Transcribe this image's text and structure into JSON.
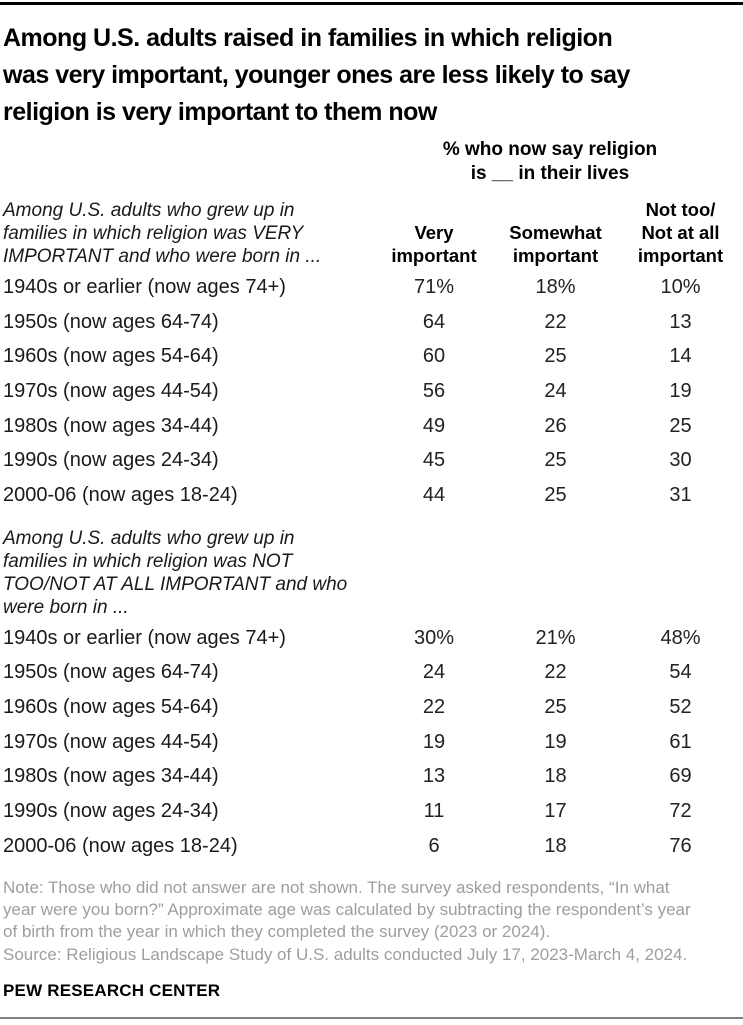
{
  "colors": {
    "title_text": "#000000",
    "body_text": "#222222",
    "note_text": "#9e9e9e",
    "top_rule": "#000000",
    "bottom_rule": "#828282"
  },
  "chart_data": {
    "type": "table",
    "title": "Among U.S. adults raised in families in which religion\nwas very important, younger ones are less likely to say\nreligion is very important to them now",
    "subtitle": "% who now say religion\nis __ in their lives",
    "columns": [
      "Very\nimportant",
      "Somewhat\nimportant",
      "Not too/\nNot at all\nimportant"
    ],
    "sections": [
      {
        "label": "Among U.S. adults who grew up in\nfamilies in which religion was VERY\nIMPORTANT and who were born in ...",
        "rows": [
          {
            "label": "1940s or earlier (now ages 74+)",
            "values": [
              "71%",
              "18%",
              "10%"
            ]
          },
          {
            "label": "1950s (now ages 64-74)",
            "values": [
              "64",
              "22",
              "13"
            ]
          },
          {
            "label": "1960s (now ages 54-64)",
            "values": [
              "60",
              "25",
              "14"
            ]
          },
          {
            "label": "1970s (now ages 44-54)",
            "values": [
              "56",
              "24",
              "19"
            ]
          },
          {
            "label": "1980s (now ages 34-44)",
            "values": [
              "49",
              "26",
              "25"
            ]
          },
          {
            "label": "1990s (now ages 24-34)",
            "values": [
              "45",
              "25",
              "30"
            ]
          },
          {
            "label": "2000-06 (now ages 18-24)",
            "values": [
              "44",
              "25",
              "31"
            ]
          }
        ]
      },
      {
        "label": "Among U.S. adults who grew up in\nfamilies in which religion was NOT\nTOO/NOT AT ALL IMPORTANT and who\nwere born in ...",
        "rows": [
          {
            "label": "1940s or earlier (now ages 74+)",
            "values": [
              "30%",
              "21%",
              "48%"
            ]
          },
          {
            "label": "1950s (now ages 64-74)",
            "values": [
              "24",
              "22",
              "54"
            ]
          },
          {
            "label": "1960s (now ages 54-64)",
            "values": [
              "22",
              "25",
              "52"
            ]
          },
          {
            "label": "1970s (now ages 44-54)",
            "values": [
              "19",
              "19",
              "61"
            ]
          },
          {
            "label": "1980s (now ages 34-44)",
            "values": [
              "13",
              "18",
              "69"
            ]
          },
          {
            "label": "1990s (now ages 24-34)",
            "values": [
              "11",
              "17",
              "72"
            ]
          },
          {
            "label": "2000-06 (now ages 18-24)",
            "values": [
              "6",
              "18",
              "76"
            ]
          }
        ]
      }
    ],
    "footer": {
      "note": "Note: Those who did not answer are not shown. The survey asked respondents, “In what\nyear were you born?” Approximate age was calculated by subtracting the respondent’s year\nof birth from the year in which they completed the survey (2023 or 2024).\nSource: Religious Landscape Study of U.S. adults conducted July 17, 2023-March 4, 2024.",
      "brand": "PEW RESEARCH CENTER"
    }
  }
}
